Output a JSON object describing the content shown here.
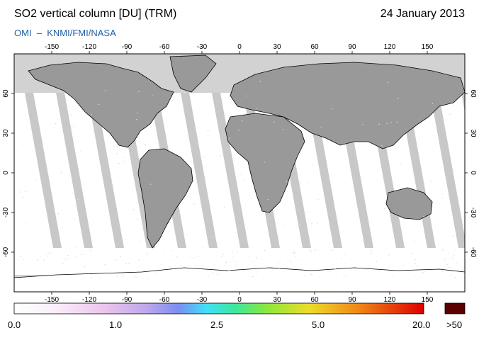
{
  "header": {
    "title": "SO2 vertical column [DU] (TRM)",
    "date": "24 January 2013",
    "credit": "OMI  –  KNMI/FMI/NASA"
  },
  "map": {
    "projection": "equirectangular",
    "lon_range": [
      -180,
      180
    ],
    "lat_range": [
      -90,
      90
    ],
    "lon_ticks": [
      "-150",
      "-120",
      "-90",
      "-60",
      "-30",
      "0",
      "30",
      "60",
      "90",
      "120",
      "150"
    ],
    "lat_ticks": [
      "60",
      "30",
      "0",
      "-30",
      "-60"
    ],
    "colors": {
      "no_data": "#d2d2d2",
      "land_dark": "#999999",
      "swath": "#c4c4c4",
      "coast": "#000000",
      "background": "#ffffff"
    }
  },
  "colorbar": {
    "labels": [
      "0.0",
      "1.0",
      "2.5",
      "5.0",
      "20.0",
      ">50"
    ],
    "gradient_colors": [
      "#ffffff",
      "#f2d6f2",
      "#e8b6e8",
      "#a49ae8",
      "#5fd8f8",
      "#3ee8a8",
      "#8ce83c",
      "#f0e030",
      "#f0a020",
      "#f05010",
      "#d80000"
    ],
    "overflow_color": "#5a0000"
  }
}
